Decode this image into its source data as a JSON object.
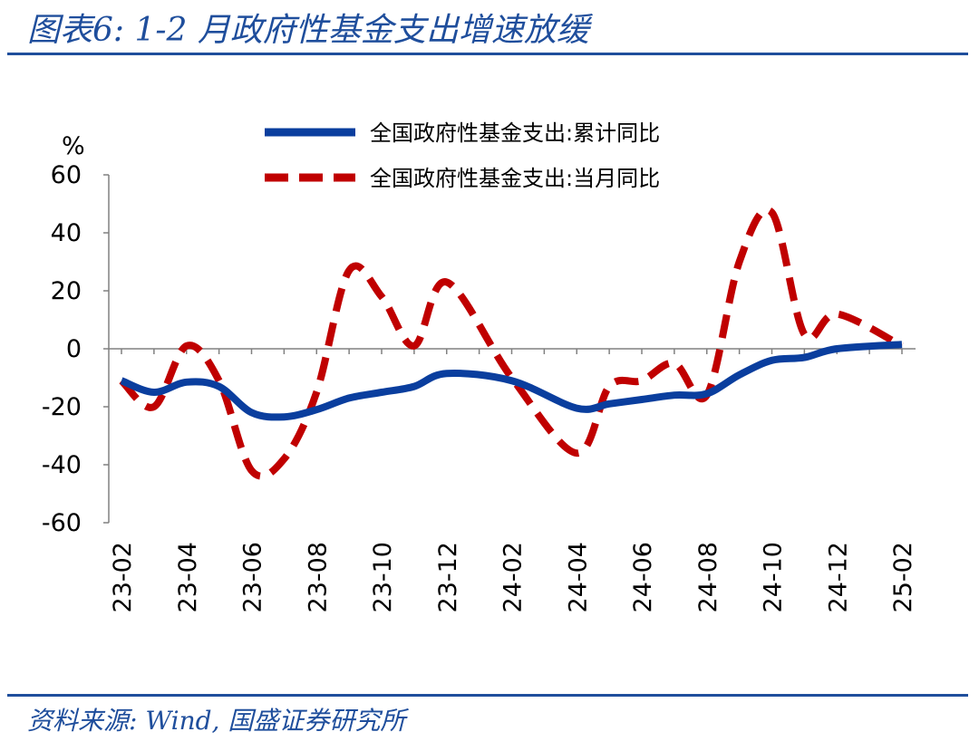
{
  "header": {
    "title": "图表6:  1-2 月政府性基金支出增速放缓"
  },
  "footer": {
    "source": "资料来源:  Wind,  国盛证券研究所"
  },
  "colors": {
    "brand": "#1f4e9c",
    "series_cumulative": "#0a3e9e",
    "series_monthly": "#c00000"
  },
  "chart_data": {
    "type": "line",
    "y_unit": "%",
    "ylim": [
      -60,
      60
    ],
    "yticks": [
      60,
      40,
      20,
      0,
      -20,
      -40,
      -60
    ],
    "x_tick_labels": [
      "23-02",
      "23-04",
      "23-06",
      "23-08",
      "23-10",
      "23-12",
      "24-02",
      "24-04",
      "24-06",
      "24-08",
      "24-10",
      "24-12",
      "25-02"
    ],
    "x": [
      "23-02",
      "23-03",
      "23-04",
      "23-05",
      "23-06",
      "23-07",
      "23-08",
      "23-09",
      "23-10",
      "23-11",
      "23-12",
      "24-01",
      "24-02",
      "24-03",
      "24-04",
      "24-05",
      "24-06",
      "24-07",
      "24-08",
      "24-09",
      "24-10",
      "24-11",
      "24-12",
      "25-01",
      "25-02"
    ],
    "series": [
      {
        "name": "全国政府性基金支出:累计同比",
        "style": "solid",
        "values": [
          -11,
          -15,
          -11.5,
          -13,
          -22,
          -23.5,
          -21,
          -17,
          -15,
          -13,
          -8.5,
          null,
          -11,
          null,
          -20.5,
          -19,
          -17.5,
          -16,
          -15.5,
          -9,
          -4,
          -3,
          0,
          null,
          1.5
        ]
      },
      {
        "name": "全国政府性基金支出:当月同比",
        "style": "dashed",
        "values": [
          -11,
          -20,
          1,
          -11,
          -42,
          -38,
          -15,
          27,
          18,
          1,
          23,
          null,
          -10,
          null,
          -36,
          -13,
          -11,
          -5,
          -16,
          30,
          47,
          5,
          12,
          null,
          1
        ]
      }
    ],
    "legend_position": "top-center",
    "zero_line": true
  }
}
